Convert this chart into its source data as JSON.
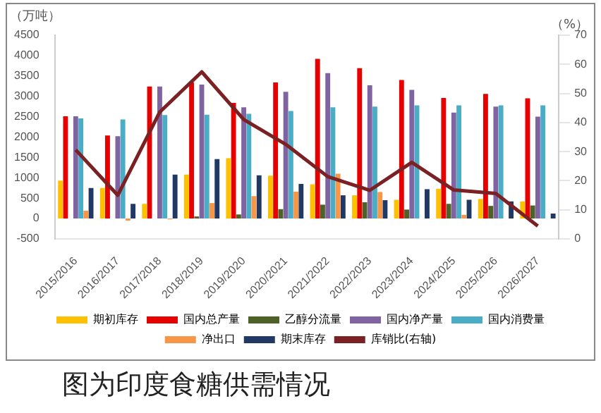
{
  "chart_data": {
    "type": "bar",
    "ylabel": "（万吨）",
    "y2label": "（%）",
    "categories": [
      "2015/2016",
      "2016/2017",
      "2017/2018",
      "2018/2019",
      "2019/2020",
      "2020/2021",
      "2021/2022",
      "2022/2023",
      "2023/2024",
      "2024/2025",
      "2025/2026",
      "2026/2027"
    ],
    "series": [
      {
        "name": "期初库存",
        "color": "#ffc000",
        "values": [
          930,
          750,
          360,
          1080,
          1480,
          1050,
          840,
          570,
          460,
          730,
          480,
          420
        ]
      },
      {
        "name": "国内总产量",
        "color": "#e60000",
        "values": [
          2510,
          2040,
          3240,
          3340,
          2840,
          3340,
          3920,
          3690,
          3400,
          2960,
          3060,
          2950
        ]
      },
      {
        "name": "乙醇分流量",
        "color": "#4e6228",
        "values": [
          0,
          0,
          0,
          50,
          100,
          230,
          340,
          400,
          220,
          360,
          310,
          320
        ]
      },
      {
        "name": "国内净产量",
        "color": "#8064a2",
        "values": [
          2510,
          2020,
          3240,
          3290,
          2730,
          3110,
          3570,
          3270,
          3160,
          2600,
          2750,
          2500
        ]
      },
      {
        "name": "国内消费量",
        "color": "#4bacc6",
        "values": [
          2460,
          2430,
          2540,
          2550,
          2570,
          2640,
          2730,
          2750,
          2780,
          2780,
          2780,
          2780
        ]
      },
      {
        "name": "净出口",
        "color": "#f79646",
        "values": [
          190,
          -50,
          -20,
          380,
          550,
          660,
          1100,
          650,
          0,
          90,
          0,
          0
        ]
      },
      {
        "name": "期末库存",
        "color": "#1f3864",
        "values": [
          750,
          360,
          1080,
          1460,
          1060,
          850,
          570,
          450,
          720,
          460,
          420,
          120
        ]
      },
      {
        "name": "库销比(右轴)",
        "type": "line",
        "axis": "y2",
        "color": "#7b2123",
        "values": [
          30.6,
          15,
          43.6,
          57.4,
          41,
          32.5,
          21.4,
          16.7,
          26.3,
          16.8,
          15.6,
          4.4
        ]
      }
    ],
    "ylim": [
      -500,
      4500
    ],
    "yticks": [
      -500,
      0,
      500,
      1000,
      1500,
      2000,
      2500,
      3000,
      3500,
      4000,
      4500
    ],
    "y2lim": [
      0,
      70
    ],
    "y2ticks": [
      0,
      10,
      20,
      30,
      40,
      50,
      60,
      70
    ],
    "grid": false,
    "legend": "bottom",
    "marker": "none",
    "annotations": [
      "图为印度食糖供需情况"
    ]
  }
}
